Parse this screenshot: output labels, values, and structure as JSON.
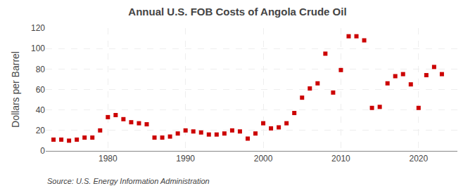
{
  "chart_data": {
    "type": "scatter",
    "title": "Annual U.S. FOB Costs of Angola Crude Oil",
    "ylabel": "Dollars per Barrel",
    "annotations": [
      "Source: U.S. Energy Information Administration"
    ],
    "x": [
      1973,
      1974,
      1975,
      1976,
      1977,
      1978,
      1979,
      1980,
      1981,
      1982,
      1983,
      1984,
      1985,
      1986,
      1987,
      1988,
      1989,
      1990,
      1991,
      1992,
      1993,
      1994,
      1995,
      1996,
      1997,
      1998,
      1999,
      2000,
      2001,
      2002,
      2003,
      2004,
      2005,
      2006,
      2007,
      2008,
      2009,
      2010,
      2011,
      2012,
      2013,
      2014,
      2015,
      2016,
      2017,
      2018,
      2019,
      2020,
      2021,
      2022,
      2023
    ],
    "values": [
      11,
      11,
      10,
      11,
      13,
      13,
      20,
      33,
      35,
      31,
      28,
      27,
      26,
      13,
      13,
      14,
      17,
      20,
      19,
      18,
      16,
      16,
      17,
      20,
      19,
      12,
      17,
      27,
      22,
      23,
      27,
      37,
      52,
      61,
      66,
      95,
      57,
      79,
      112,
      112,
      108,
      42,
      43,
      66,
      73,
      75,
      65,
      42,
      74,
      82,
      75
    ],
    "color": "#cc0000",
    "marker": "square",
    "xlim": [
      1972,
      2025
    ],
    "xticks": [
      1980,
      1990,
      2000,
      2010,
      2020
    ],
    "ylim": [
      0,
      120
    ],
    "yticks": [
      0,
      20,
      40,
      60,
      80,
      100,
      120
    ],
    "grid": true
  }
}
